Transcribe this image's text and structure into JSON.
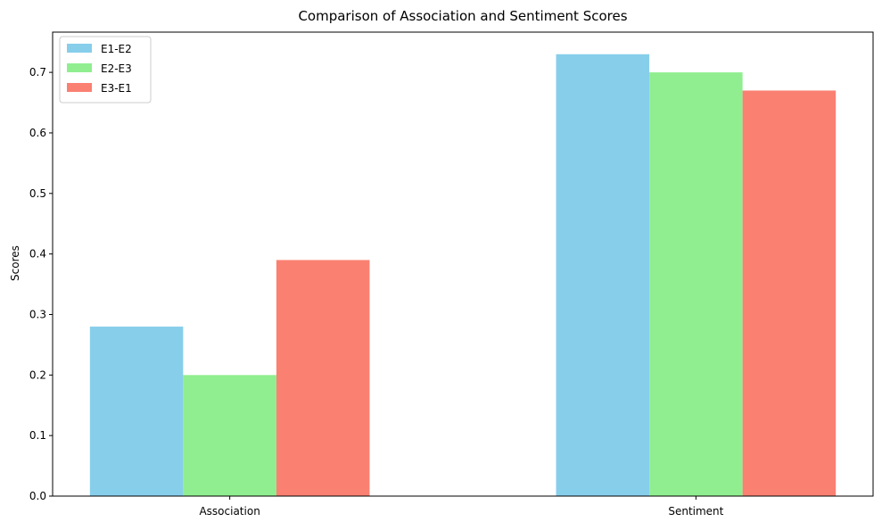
{
  "chart_data": {
    "type": "bar",
    "title": "Comparison of Association and Sentiment Scores",
    "xlabel": "",
    "ylabel": "Scores",
    "categories": [
      "Association",
      "Sentiment"
    ],
    "series": [
      {
        "name": "E1-E2",
        "color": "#87ceeb",
        "values": [
          0.28,
          0.73
        ]
      },
      {
        "name": "E2-E3",
        "color": "#90ee90",
        "values": [
          0.2,
          0.7
        ]
      },
      {
        "name": "E3-E1",
        "color": "#fa8072",
        "values": [
          0.39,
          0.67
        ]
      }
    ],
    "ylim": [
      0,
      0.7665
    ],
    "yticks": [
      0.0,
      0.1,
      0.2,
      0.3,
      0.4,
      0.5,
      0.6,
      0.7
    ],
    "ytick_labels": [
      "0.0",
      "0.1",
      "0.2",
      "0.3",
      "0.4",
      "0.5",
      "0.6",
      "0.7"
    ],
    "grid": false,
    "legend_position": "top-left"
  }
}
